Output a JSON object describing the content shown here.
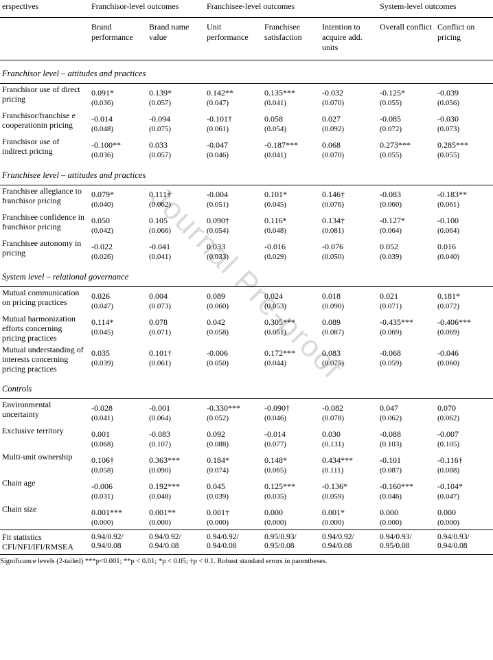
{
  "topHeaders": {
    "perspectives": "erspectives",
    "franchisor": "Franchisor-level outcomes",
    "franchisee": "Franchisee-level outcomes",
    "system": "System-level outcomes"
  },
  "subHeaders": [
    "Brand performance",
    "Brand name value",
    "Unit performance",
    "Franchisee satisfaction",
    "Intention to acquire add. units",
    "Overall conflict",
    "Conflict on pricing"
  ],
  "sections": [
    {
      "title": "Franchisor level – attitudes and practices",
      "rows": [
        {
          "label": "Franchisor use of direct pricing",
          "cells": [
            {
              "est": "0.091*",
              "se": "(0.036)"
            },
            {
              "est": "0.139*",
              "se": "(0.057)"
            },
            {
              "est": "0.142**",
              "se": "(0.047)"
            },
            {
              "est": "0.135***",
              "se": "(0.041)"
            },
            {
              "est": "-0.032",
              "se": "(0.070)"
            },
            {
              "est": "-0.125*",
              "se": "(0.055)"
            },
            {
              "est": "-0.039",
              "se": "(0.056)"
            }
          ]
        },
        {
          "label": "Franchisor/franchise e cooperationin pricing",
          "cells": [
            {
              "est": "-0.014",
              "se": "(0.048)"
            },
            {
              "est": "-0.094",
              "se": "(0.075)"
            },
            {
              "est": "-0.101†",
              "se": "(0.061)"
            },
            {
              "est": "0.058",
              "se": "(0.054)"
            },
            {
              "est": "0.027",
              "se": "(0.092)"
            },
            {
              "est": "-0.085",
              "se": "(0.072)"
            },
            {
              "est": "-0.030",
              "se": "(0.073)"
            }
          ]
        },
        {
          "label": "Franchisor use of indirect pricing",
          "cells": [
            {
              "est": "-0.100**",
              "se": "(0.036)"
            },
            {
              "est": "0.033",
              "se": "(0.057)"
            },
            {
              "est": "-0.047",
              "se": "(0.046)"
            },
            {
              "est": "-0.187***",
              "se": "(0.041)"
            },
            {
              "est": "0.068",
              "se": "(0.070)"
            },
            {
              "est": "0.273***",
              "se": "(0.055)"
            },
            {
              "est": "0.285***",
              "se": "(0.055)"
            }
          ]
        }
      ]
    },
    {
      "title": "Franchisee level – attitudes and practices",
      "rows": [
        {
          "label": "Franchisee allegiance to franchisor pricing",
          "cells": [
            {
              "est": "0.079*",
              "se": "(0.040)"
            },
            {
              "est": "0.111†",
              "se": "(0.062)"
            },
            {
              "est": "-0.004",
              "se": "(0.051)"
            },
            {
              "est": "0.101*",
              "se": "(0.045)"
            },
            {
              "est": "0.146†",
              "se": "(0.076)"
            },
            {
              "est": "-0.083",
              "se": "(0.060)"
            },
            {
              "est": "-0.183**",
              "se": "(0.061)"
            }
          ]
        },
        {
          "label": "Franchisee confidence in franchisor pricing",
          "cells": [
            {
              "est": "0.050",
              "se": "(0.042)"
            },
            {
              "est": "0.105",
              "se": "(0.066)"
            },
            {
              "est": "0.090†",
              "se": "(0.054)"
            },
            {
              "est": "0.116*",
              "se": "(0.048)"
            },
            {
              "est": "0.134†",
              "se": "(0.081)"
            },
            {
              "est": "-0.127*",
              "se": "(0.064)"
            },
            {
              "est": "-0.100",
              "se": "(0.064)"
            }
          ]
        },
        {
          "label": "Franchisee autonomy in pricing",
          "cells": [
            {
              "est": "-0.022",
              "se": "(0.026)"
            },
            {
              "est": "-0.041",
              "se": "(0.041)"
            },
            {
              "est": "0.033",
              "se": "(0.033)"
            },
            {
              "est": "-0.016",
              "se": "(0.029)"
            },
            {
              "est": "-0.076",
              "se": "(0.050)"
            },
            {
              "est": "0.052",
              "se": "(0.039)"
            },
            {
              "est": "0.016",
              "se": "(0.040)"
            }
          ]
        }
      ]
    },
    {
      "title": "System level – relational governance",
      "rows": [
        {
          "label": "Mutual communication on pricing practices",
          "cells": [
            {
              "est": "0.026",
              "se": "(0.047)"
            },
            {
              "est": "0.004",
              "se": "(0.073)"
            },
            {
              "est": "0.089",
              "se": "(0.060)"
            },
            {
              "est": "0.024",
              "se": "(0.053)"
            },
            {
              "est": "0.018",
              "se": "(0.090)"
            },
            {
              "est": "0.021",
              "se": "(0.071)"
            },
            {
              "est": "0.181*",
              "se": "(0.072)"
            }
          ]
        },
        {
          "label": "Mutual harmonization efforts concerning pricing practices",
          "cells": [
            {
              "est": "0.114*",
              "se": "(0.045)"
            },
            {
              "est": "0.078",
              "se": "(0.071)"
            },
            {
              "est": "0.042",
              "se": "(0.058)"
            },
            {
              "est": "0.305***",
              "se": "(0.051)"
            },
            {
              "est": "0.089",
              "se": "(0.087)"
            },
            {
              "est": "-0.435***",
              "se": "(0.069)"
            },
            {
              "est": "-0.406***",
              "se": "(0.069)"
            }
          ]
        },
        {
          "label": "Mutual understanding of interests concerning pricing practices",
          "cells": [
            {
              "est": "0.035",
              "se": "(0.039)"
            },
            {
              "est": "0.101†",
              "se": "(0.061)"
            },
            {
              "est": "-0.006",
              "se": "(0.050)"
            },
            {
              "est": "0.172***",
              "se": "(0.044)"
            },
            {
              "est": "0.083",
              "se": "(0.075)"
            },
            {
              "est": "-0.068",
              "se": "(0.059)"
            },
            {
              "est": "-0.046",
              "se": "(0.060)"
            }
          ]
        }
      ]
    },
    {
      "title": "Controls",
      "rows": [
        {
          "label": "Environmental uncertainty",
          "cells": [
            {
              "est": "-0.028",
              "se": "(0.041)"
            },
            {
              "est": "-0.001",
              "se": "(0.064)"
            },
            {
              "est": "-0.330***",
              "se": "(0.052)"
            },
            {
              "est": "-0.090†",
              "se": "(0.046)"
            },
            {
              "est": "-0.082",
              "se": "(0.078)"
            },
            {
              "est": "0.047",
              "se": "(0.062)"
            },
            {
              "est": "0.070",
              "se": "(0.062)"
            }
          ]
        },
        {
          "label": "Exclusive territory",
          "cells": [
            {
              "est": "0.001",
              "se": "(0.068)"
            },
            {
              "est": "-0.083",
              "se": "(0.107)"
            },
            {
              "est": "0.092",
              "se": "(0.088)"
            },
            {
              "est": "-0.014",
              "se": "(0.077)"
            },
            {
              "est": "0.030",
              "se": "(0.131)"
            },
            {
              "est": "-0.088",
              "se": "(0.103)"
            },
            {
              "est": "-0.007",
              "se": "(0.105)"
            }
          ]
        },
        {
          "label": "Multi-unit ownership",
          "cells": [
            {
              "est": "0.106†",
              "se": "(0.058)"
            },
            {
              "est": "0.363***",
              "se": "(0.090)"
            },
            {
              "est": "0.184*",
              "se": "(0.074)"
            },
            {
              "est": "0.148*",
              "se": "(0.065)"
            },
            {
              "est": "0.434***",
              "se": "(0.111)"
            },
            {
              "est": "-0.101",
              "se": "(0.087)"
            },
            {
              "est": "-0.116†",
              "se": "(0.088)"
            }
          ]
        },
        {
          "label": "Chain age",
          "cells": [
            {
              "est": "-0.006",
              "se": "(0.031)"
            },
            {
              "est": "0.192***",
              "se": "(0.048)"
            },
            {
              "est": "0.045",
              "se": "(0.039)"
            },
            {
              "est": "0.125***",
              "se": "(0.035)"
            },
            {
              "est": "-0.136*",
              "se": "(0.059)"
            },
            {
              "est": "-0.160***",
              "se": "(0.046)"
            },
            {
              "est": "-0.104*",
              "se": "(0.047)"
            }
          ]
        },
        {
          "label": "Chain size",
          "cells": [
            {
              "est": "0.001***",
              "se": "(0.000)"
            },
            {
              "est": "0.001**",
              "se": "(0.000)"
            },
            {
              "est": "0.001†",
              "se": "(0.000)"
            },
            {
              "est": "0.000",
              "se": "(0.000)"
            },
            {
              "est": "0.001*",
              "se": "(0.000)"
            },
            {
              "est": "0.000",
              "se": "(0.000)"
            },
            {
              "est": "0.000",
              "se": "(0.000)"
            }
          ]
        }
      ]
    }
  ],
  "fit": {
    "label": "Fit statistics CFI/NFI/IFI/RMSEA",
    "cells": [
      "0.94/0.92/ 0.94/0.08",
      "0.94/0.92/ 0.94/0.08",
      "0.94/0.92/ 0.94/0.08",
      "0.95/0.93/ 0.95/0.08",
      "0.94/0.92/ 0.94/0.08",
      "0.94/0.93/ 0.95/0.08",
      "0.94/0.93/ 0.94/0.08"
    ]
  },
  "footnote": "Significance levels (2-tailed)   ***p<0.001; **p < 0.01; *p < 0.05; †p < 0.1. Robust standard errors in parentheses.",
  "watermark": "Journal Pre-proof"
}
